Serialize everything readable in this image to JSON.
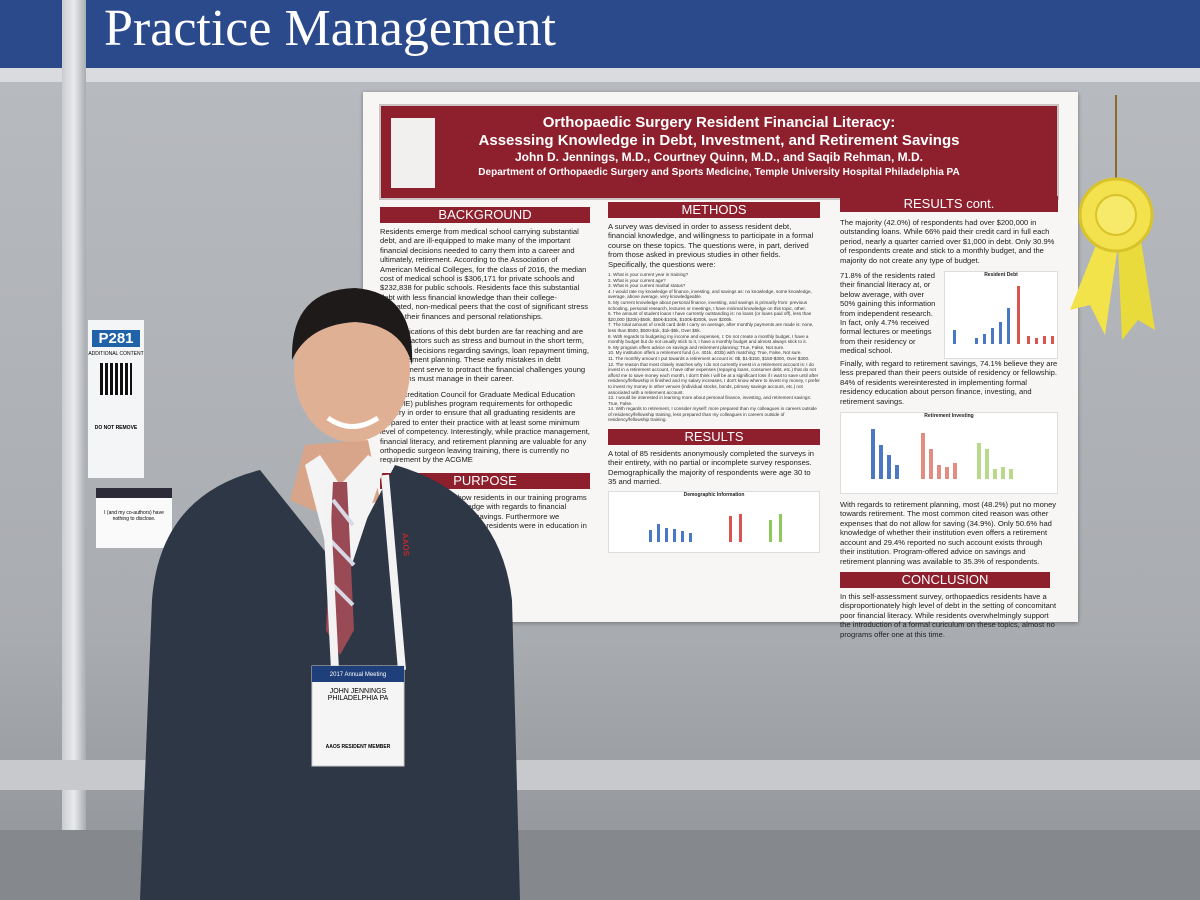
{
  "banner": {
    "title": "Practice Management"
  },
  "sign": {
    "number": "P281",
    "label": "ADDITIONAL CONTENT",
    "note": "DO NOT REMOVE"
  },
  "disclosure": {
    "text": "I (and my co-authors) have nothing to disclose."
  },
  "poster": {
    "title_line1": "Orthopaedic Surgery Resident Financial Literacy:",
    "title_line2": "Assessing Knowledge in Debt, Investment, and Retirement Savings",
    "authors": "John D. Jennings, M.D., Courtney Quinn, M.D., and Saqib Rehman, M.D.",
    "department": "Department of Orthopaedic Surgery and Sports Medicine, Temple University Hospital  Philadelphia PA",
    "background": {
      "heading": "BACKGROUND",
      "p1": "Residents emerge from medical school carrying substantial debt, and are ill-equipped to make many of the important financial decisions needed to carry them into a career and ultimately, retirement. According to the Association of American Medical Colleges, for the class of 2016, the median cost of medical school is $306,171 for private schools and $232,838 for public schools. Residents face this substantial debt with less financial knowledge than their college-educated, non-medical peers that the cost of significant stress in both their finances and personal relationships.",
      "p2": "The implications of this debt burden are far reaching and are not only factors such as stress and burnout in the short term, but future decisions regarding savings, loan repayment timing, and retirement planning. These early mistakes in debt management serve to protract the financial challenges young physicians must manage in their career.",
      "p3": "The Accreditation Council for Graduate Medical Education (ACGME) publishes program requirements for orthopedic surgery in order to ensure that all graduating residents are prepared to enter their practice with at least some minimum level of competency. Interestingly, while practice management, financial literacy, and retirement planning are valuable for any orthopedic surgeon leaving training, there is currently no requirement by the ACGME"
    },
    "purpose": {
      "heading": "PURPOSE",
      "text": "We sought to evaluate how residents in our training programs perceived their own knowledge with regards to financial literacy, debt and retirement savings. Furthermore we assessed how interested these residents were in education in this field as a mandatory"
    },
    "methods": {
      "heading": "METHODS",
      "text": "A survey was devised in order to assess resident debt, financial knowledge, and willingness to participate in a formal course on these topics. The questions were, in part, derived from those asked in previous studies in other fields.  Specifically, the questions were:",
      "questions": [
        "1. What is your current year in training?",
        "2. What is your current age?",
        "3. What is your current marital status?",
        "4. I would rate my knowledge of finance, investing, and savings as: no knowledge, some knowledge, average, above average, very knowledgeable.",
        "5. My current knowledge about personal finance, investing, and savings is primarily from: previous schooling, personal research, lectures or meetings, I have minimal knowledge on this topic, other.",
        "6. The amount of student loans I have currently outstanding is: no loans (or loans paid off), less than $20,000 ($20k)-$50k, $50k-$100k, $100k-$200k, over $200k.",
        "7. The total amount of credit card debt I carry on average, after monthly payments are made is: none, less than $500, $500-$1k, $1k-$5k, Over $5k.",
        "8. With regards to budgeting my income and expenses, I: Do not create a monthly budget, I have a monthly budget but do not usually stick to it, I have a monthly budget and almost always stick to it.",
        "9. My program offers advice on savings and retirement planning: True, False, Not sure.",
        "10. My institution offers a retirement fund (i.e. 401k, 403b) with matching: True, False, Not sure.",
        "11. The monthly amount I put towards a retirement account is: 0$, $1-$150, $150-$300, Over $300.",
        "12. The reason that most closely matches why I do not currently invest in a retirement account is: I do invest in a retirement account, I have other expenses (repaying loans, consumer debt, etc.) that do not afford me to save money each month, I don't think I will be at a significant loss if I wait to save until after residency/fellowship is finished and my salary increases, I don't know where to invest my money, I prefer to invest my money in other venues (individual stocks, bonds, primary savings account, etc.) not associated with a retirement account.",
        "13. I would be interested in learning more about personal finance, investing, and retirement savings: True, False.",
        "14. With regards to retirement, I consider myself: more prepared than my colleagues in careers outside of residency/fellowship training, less prepared than my colleagues in careers outside of residency/fellowship training."
      ]
    },
    "results": {
      "heading": "RESULTS",
      "text": "A total of 85 residents anonymously completed the surveys in their entirety, with no partial or incomplete survey responses. Demographically the majority of respondents were age 30 to 35 and married.",
      "figure_title": "Demographic Information"
    },
    "results_cont": {
      "heading": "RESULTS cont.",
      "p1": "The majority (42.0%) of respondents had over $200,000 in outstanding loans. While 66% paid their credit card in full each period, nearly a quarter carried over $1,000 in debt. Only 30.9% of respondents create and stick to a monthly budget, and the majority do not create any type of budget.",
      "p2": "71.8% of the residents rated their financial literacy at, or below average, with over 50% gaining this information from independent research. In fact, only 4.7% received formal lectures or meetings from their residency or medical school.",
      "p3": "Finally, with regard to retirement savings, 74.1% believe they are less prepared than their peers outside of residency or fellowship. 84% of residents wereinterested in implementing formal residency education about person finance, investing, and retirement savings.",
      "figure1_title": "Resident Debt",
      "figure2_title": "Retirement Investing",
      "p4": "With regards to retirement planning, most (48.2%) put no money towards retirement. The most common cited reason was other expenses that do not allow for saving (34.9%). Only 50.6% had knowledge of whether their institution even offers a retirement account and 29.4% reported no such account exists through their institution. Program-offered advice on savings and retirement planning was available to 35.3% of respondents."
    },
    "conclusion": {
      "heading": "CONCLUSION",
      "text": "In this self-assessment survey, orthopaedics residents have a disproportionately high level of debt in the setting of concomitant poor financial literacy. While residents overwhelmingly support the introduction of a formal curiculum on these topics, almost no programs offer one at this time."
    }
  },
  "badge": {
    "meeting": "2017 Annual Meeting",
    "name": "JOHN JENNINGS",
    "city": "PHILADELPHIA PA",
    "member": "AAOS RESIDENT MEMBER",
    "lanyard": "AAOS"
  }
}
